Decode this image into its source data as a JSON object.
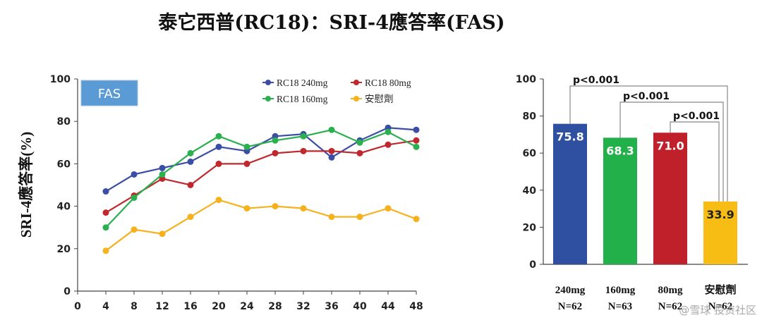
{
  "title": "泰它西普(RC18)：SRI-4應答率(FAS)",
  "chart_data": [
    {
      "type": "line",
      "badge": "FAS",
      "ylabel": "SRI-4應答率(%)",
      "xlabel": "",
      "ylim": [
        0,
        100
      ],
      "yticks": [
        0,
        20,
        40,
        60,
        80,
        100
      ],
      "xticks": [
        0,
        4,
        8,
        12,
        16,
        20,
        24,
        28,
        32,
        36,
        40,
        44,
        48
      ],
      "x": [
        4,
        8,
        12,
        16,
        20,
        24,
        28,
        32,
        36,
        40,
        44,
        48
      ],
      "grid": false,
      "legend_position": "top-right",
      "series": [
        {
          "name": "RC18 240mg",
          "color": "#3a4ea5",
          "values": [
            47,
            55,
            58,
            61,
            68,
            66,
            73,
            74,
            63,
            71,
            77,
            76
          ]
        },
        {
          "name": "RC18 80mg",
          "color": "#c0282d",
          "values": [
            37,
            45,
            53,
            50,
            60,
            60,
            65,
            66,
            66,
            65,
            69,
            71
          ]
        },
        {
          "name": "RC18 160mg",
          "color": "#2ab04f",
          "values": [
            30,
            44,
            55,
            65,
            73,
            68,
            71,
            73,
            76,
            70,
            75,
            68
          ]
        },
        {
          "name": "安慰劑",
          "color": "#f5b21e",
          "values": [
            19,
            29,
            27,
            35,
            43,
            39,
            40,
            39,
            35,
            35,
            39,
            34
          ]
        }
      ]
    },
    {
      "type": "bar",
      "ylim": [
        0,
        100
      ],
      "yticks": [
        0,
        20,
        40,
        60,
        80,
        100
      ],
      "grid": false,
      "categories": [
        "240mg",
        "160mg",
        "80mg",
        "安慰劑"
      ],
      "n_labels": [
        "N=62",
        "N=63",
        "N=62",
        "N=62"
      ],
      "values": [
        75.8,
        68.3,
        71.0,
        33.9
      ],
      "value_labels": [
        "75.8",
        "68.3",
        "71.0",
        "33.9"
      ],
      "colors": [
        "#2f4fa0",
        "#22b04b",
        "#c0202a",
        "#f8bd14"
      ],
      "annotations": [
        {
          "text": "p<0.001",
          "from": 0,
          "to": 3
        },
        {
          "text": "p<0.001",
          "from": 1,
          "to": 3
        },
        {
          "text": "p<0.001",
          "from": 2,
          "to": 3
        }
      ]
    }
  ],
  "watermark": "@雪球 投资社区"
}
